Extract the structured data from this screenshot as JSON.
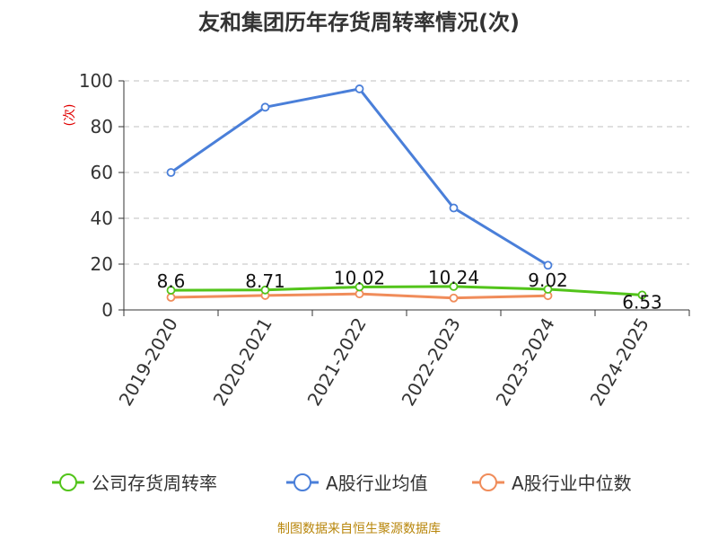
{
  "chart_data": {
    "type": "line",
    "title": "友和集团历年存货周转率情况(次)",
    "ylabel": "(次)",
    "xlabel": "",
    "ylim": [
      0,
      100
    ],
    "yticks": [
      0,
      20,
      40,
      60,
      80,
      100
    ],
    "grid": true,
    "legend_position": "bottom",
    "categories": [
      "2019-2020",
      "2020-2021",
      "2021-2022",
      "2022-2023",
      "2023-2024",
      "2024-2025"
    ],
    "series": [
      {
        "name": "公司存货周转率",
        "color": "#52c41a",
        "values": [
          8.6,
          8.71,
          10.02,
          10.24,
          9.02,
          6.53
        ],
        "labels": [
          "8.6",
          "8.71",
          "10.02",
          "10.24",
          "9.02",
          "6.53"
        ]
      },
      {
        "name": "A股行业均值",
        "color": "#4a7fd9",
        "values": [
          60,
          88.5,
          96.5,
          44.5,
          19.5,
          null
        ]
      },
      {
        "name": "A股行业中位数",
        "color": "#f08c5a",
        "values": [
          5.5,
          6.3,
          7.0,
          5.2,
          6.2,
          null
        ]
      }
    ]
  },
  "source": "制图数据来自恒生聚源数据库"
}
